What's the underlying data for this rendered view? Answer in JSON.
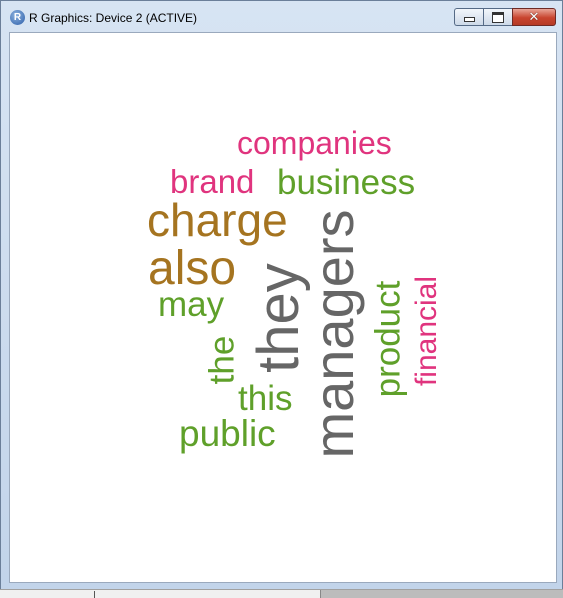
{
  "window": {
    "title": "R Graphics: Device 2 (ACTIVE)",
    "app_icon_letter": "R",
    "buttons": {
      "minimize": "minimize",
      "maximize": "maximize",
      "close": "✕"
    }
  },
  "colors": {
    "pink": "#e0347e",
    "green": "#5fa02a",
    "brown": "#a57420",
    "gray": "#666666"
  },
  "wordcloud": {
    "words": [
      {
        "text": "companies",
        "color": "#e0347e",
        "rotated": false
      },
      {
        "text": "brand",
        "color": "#e0347e",
        "rotated": false
      },
      {
        "text": "business",
        "color": "#5fa02a",
        "rotated": false
      },
      {
        "text": "charge",
        "color": "#a57420",
        "rotated": false
      },
      {
        "text": "also",
        "color": "#a57420",
        "rotated": false
      },
      {
        "text": "may",
        "color": "#5fa02a",
        "rotated": false
      },
      {
        "text": "the",
        "color": "#5fa02a",
        "rotated": true
      },
      {
        "text": "they",
        "color": "#666666",
        "rotated": true
      },
      {
        "text": "managers",
        "color": "#666666",
        "rotated": true
      },
      {
        "text": "product",
        "color": "#5fa02a",
        "rotated": true
      },
      {
        "text": "financial",
        "color": "#e0347e",
        "rotated": true
      },
      {
        "text": "this",
        "color": "#5fa02a",
        "rotated": false
      },
      {
        "text": "public",
        "color": "#5fa02a",
        "rotated": false
      }
    ]
  }
}
